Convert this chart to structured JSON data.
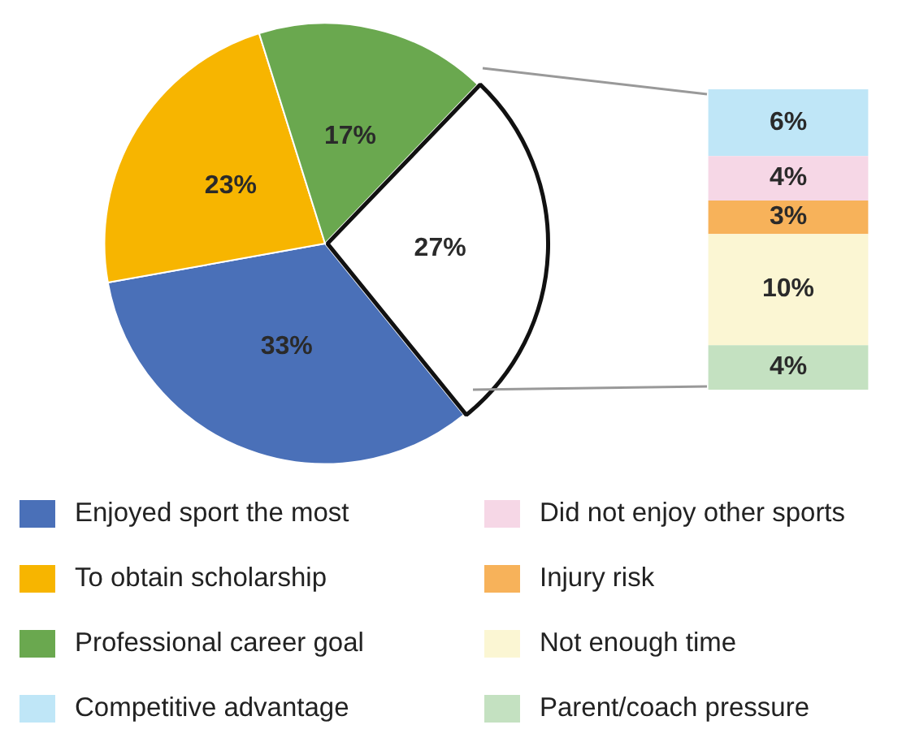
{
  "chart_data": [
    {
      "type": "pie",
      "categories": [
        "Enjoyed sport the most",
        "To obtain scholarship",
        "Professional career goal",
        null
      ],
      "values": [
        33,
        23,
        17,
        27
      ],
      "colors": [
        "#4a70b8",
        "#f7b500",
        "#6aa84f",
        "#ffffff"
      ],
      "value_labels": [
        "33%",
        "23%",
        "17%",
        "27%"
      ],
      "legend": "bottom"
    },
    {
      "type": "bar",
      "stacked": true,
      "categories": [
        null
      ],
      "legend": "bottom",
      "series": [
        {
          "name": "Parent/coach pressure",
          "color": "#c4e1c1",
          "values": [
            4
          ],
          "value_labels": [
            "4%"
          ]
        },
        {
          "name": "Not enough time",
          "color": "#fbf6d3",
          "values": [
            10
          ],
          "value_labels": [
            "10%"
          ]
        },
        {
          "name": "Injury risk",
          "color": "#f7b25a",
          "values": [
            3
          ],
          "value_labels": [
            "3%"
          ]
        },
        {
          "name": "Did not enjoy other sports",
          "color": "#f6d7e6",
          "values": [
            4
          ],
          "value_labels": [
            "4%"
          ]
        },
        {
          "name": "Competitive advantage",
          "color": "#bfe6f7",
          "values": [
            6
          ],
          "value_labels": [
            "6%"
          ]
        }
      ]
    }
  ]
}
